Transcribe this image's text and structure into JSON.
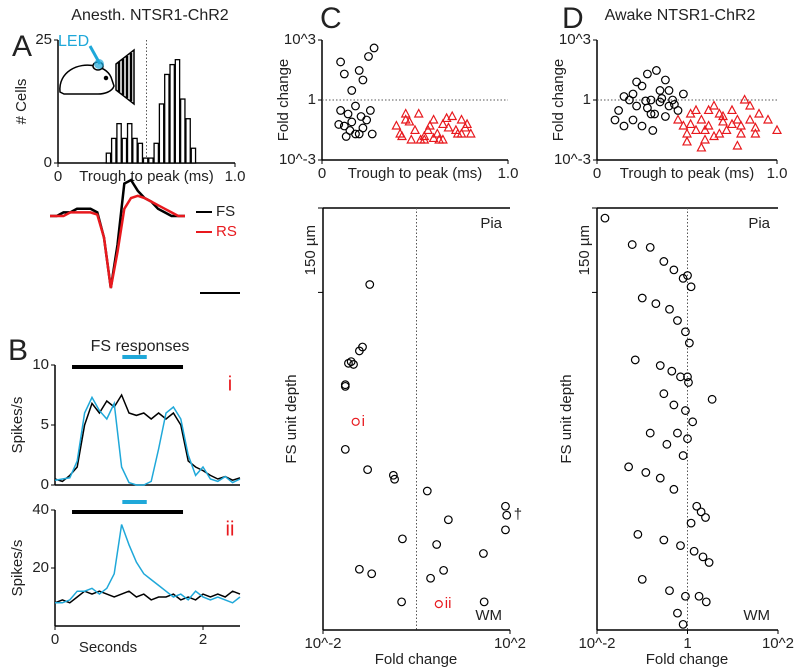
{
  "chart_data": [
    {
      "type": "histogram",
      "panel": "A",
      "title": "Anesth. NTSR1-ChR2",
      "annotation": "LED",
      "xlabel": "Trough to peak (ms)",
      "ylabel": "# Cells",
      "bins": [
        0.27,
        0.3,
        0.33,
        0.36,
        0.39,
        0.42,
        0.45,
        0.48,
        0.51,
        0.54,
        0.57,
        0.6,
        0.63,
        0.66,
        0.69,
        0.72,
        0.75,
        0.78
      ],
      "counts": [
        2,
        5,
        8,
        5,
        8,
        5,
        4,
        1,
        1,
        4,
        12,
        18,
        20,
        21,
        13,
        9,
        3
      ],
      "xlim": [
        0,
        1
      ],
      "xticks": [
        0,
        {
          "value": 1,
          "label": "1.0"
        }
      ],
      "ylim": [
        0,
        25
      ],
      "yticks": [
        0,
        25
      ],
      "vline": 0.5
    },
    {
      "type": "line",
      "series": [
        {
          "name": "FS",
          "color": "#000000",
          "values": [
            0,
            0,
            0.05,
            0.05,
            0.1,
            0.1,
            0.1,
            0.05,
            -0.3,
            -1,
            -0.4,
            0.45,
            0.5,
            0.35,
            0.25,
            0.2,
            0.1,
            0.05,
            0,
            0,
            0
          ]
        },
        {
          "name": "RS",
          "color": "#e8191e",
          "values": [
            0,
            0,
            0,
            0.05,
            0.05,
            0.05,
            0.05,
            0.02,
            -0.3,
            -1,
            -0.5,
            0.1,
            0.25,
            0.28,
            0.25,
            0.2,
            0.15,
            0.1,
            0.05,
            0,
            0
          ]
        }
      ]
    },
    {
      "type": "line",
      "panel": "B",
      "title": "FS responses",
      "tag": "i",
      "ylabel": "Spikes/s",
      "x": [
        0,
        0.1,
        0.2,
        0.3,
        0.4,
        0.5,
        0.6,
        0.7,
        0.8,
        0.9,
        1,
        1.1,
        1.2,
        1.3,
        1.4,
        1.5,
        1.6,
        1.7,
        1.8,
        1.9,
        2,
        2.1,
        2.2,
        2.3,
        2.4,
        2.5
      ],
      "series": [
        {
          "color": "#000000",
          "values": [
            0.5,
            0.3,
            0.8,
            1.5,
            5,
            6.8,
            6,
            7,
            6.5,
            7.5,
            6,
            5.8,
            6,
            5.5,
            6,
            5.5,
            6,
            5,
            2,
            1.5,
            1.2,
            0.8,
            0.5,
            0.7,
            0.4,
            0.6
          ]
        },
        {
          "color": "#1fa8d9",
          "values": [
            0.4,
            0.5,
            0.6,
            2,
            6,
            7.3,
            6.2,
            5.5,
            6.8,
            1.5,
            0.2,
            0,
            0,
            0.3,
            3,
            6,
            6.5,
            5.5,
            2.5,
            0.8,
            1.5,
            0.5,
            0.3,
            0.7,
            0.2,
            0.5
          ]
        }
      ],
      "stimulus": [
        0.23,
        1.73
      ],
      "led": [
        0.91,
        1.24
      ],
      "xlim": [
        0,
        2.5
      ],
      "ylim": [
        0,
        10
      ],
      "yticks": [
        0,
        5,
        10
      ]
    },
    {
      "type": "line",
      "tag": "ii",
      "ylabel": "Spikes/s",
      "xlabel": "Seconds",
      "x": [
        0,
        0.1,
        0.2,
        0.3,
        0.4,
        0.5,
        0.6,
        0.7,
        0.8,
        0.9,
        1,
        1.1,
        1.2,
        1.3,
        1.4,
        1.5,
        1.6,
        1.7,
        1.8,
        1.9,
        2,
        2.1,
        2.2,
        2.3,
        2.4,
        2.5
      ],
      "series": [
        {
          "color": "#000000",
          "values": [
            8,
            9,
            8,
            10,
            12,
            11,
            12,
            11,
            10,
            11,
            12,
            10,
            11,
            9,
            10,
            10,
            11,
            9,
            10,
            9,
            11,
            10,
            11,
            10,
            12,
            11
          ]
        },
        {
          "color": "#1fa8d9",
          "values": [
            8,
            8,
            9,
            12,
            12,
            13,
            11,
            13,
            18,
            35,
            28,
            22,
            18,
            16,
            14,
            12,
            10,
            11,
            9,
            12,
            10,
            9,
            10,
            9,
            8,
            10
          ]
        }
      ],
      "stimulus": [
        0.23,
        1.73
      ],
      "led": [
        0.91,
        1.24
      ],
      "xlim": [
        0,
        2.5
      ],
      "xticks": [
        0,
        2
      ],
      "ylim": [
        0,
        40
      ],
      "yticks": [
        20,
        40
      ]
    },
    {
      "type": "scatter",
      "panel": "C",
      "xlabel": "Trough to peak (ms)",
      "ylabel": "Fold change",
      "log_y": true,
      "xlim": [
        0,
        1
      ],
      "xticks": [
        0,
        {
          "value": 1,
          "label": "1.0"
        }
      ],
      "ylim": [
        0.001,
        1000
      ],
      "yticks": [
        {
          "value": 0.001,
          "label": "10^-3"
        },
        1,
        {
          "value": 1000,
          "label": "10^3"
        }
      ],
      "hline": 1,
      "series": [
        {
          "color": "#000000",
          "marker": "circle",
          "x": [
            0.1,
            0.12,
            0.2,
            0.25,
            0.28,
            0.22,
            0.16,
            0.1,
            0.14,
            0.18,
            0.24,
            0.12,
            0.15,
            0.2,
            0.26,
            0.09,
            0.18,
            0.22,
            0.13,
            0.27,
            0.16,
            0.21
          ],
          "y": [
            80,
            20,
            30,
            150,
            400,
            10,
            3,
            0.3,
            0.2,
            0.5,
            0.1,
            0.05,
            0.03,
            0.02,
            0.3,
            0.06,
            0.02,
            0.04,
            0.015,
            0.02,
            0.08,
            0.15
          ]
        },
        {
          "color": "#e8191e",
          "marker": "triangle",
          "x": [
            0.4,
            0.42,
            0.45,
            0.48,
            0.5,
            0.52,
            0.55,
            0.58,
            0.6,
            0.62,
            0.65,
            0.68,
            0.7,
            0.72,
            0.75,
            0.78,
            0.8,
            0.43,
            0.47,
            0.53,
            0.57,
            0.63,
            0.67,
            0.73,
            0.77,
            0.45,
            0.55,
            0.65,
            0.75,
            0.6
          ],
          "y": [
            0.05,
            0.02,
            0.1,
            0.01,
            0.03,
            0.2,
            0.01,
            0.05,
            0.1,
            0.02,
            0.01,
            0.04,
            0.15,
            0.03,
            0.02,
            0.06,
            0.02,
            0.015,
            0.08,
            0.01,
            0.03,
            0.01,
            0.12,
            0.02,
            0.04,
            0.2,
            0.015,
            0.06,
            0.1,
            0.012
          ]
        }
      ]
    },
    {
      "type": "scatter",
      "xlabel": "Fold change",
      "ylabel": "FS unit depth",
      "log_x": true,
      "top_label": "Pia",
      "bottom_label": "WM",
      "xlim": [
        0.01,
        100
      ],
      "xticks": [
        {
          "value": 0.01,
          "label": "10^-2"
        },
        {
          "value": 100,
          "label": "10^2"
        }
      ],
      "ylim": [
        750,
        0
      ],
      "vline": 1,
      "scale_bar": {
        "value": 150,
        "label": "150 µm"
      },
      "series": [
        {
          "color": "#000000",
          "marker": "circle",
          "x": [
            0.1,
            0.07,
            0.04,
            0.035,
            0.03,
            0.03,
            0.045,
            0.06,
            0.03,
            0.09,
            0.32,
            0.34,
            1.7,
            4.8,
            80,
            85,
            80,
            0.5,
            2.7,
            27,
            0.06,
            0.11,
            3.8,
            2,
            0.48,
            28
          ],
          "y": [
            136,
            247,
            273,
            276,
            317,
            314,
            278,
            254,
            429,
            465,
            475,
            482,
            503,
            554,
            530,
            546,
            572,
            588,
            598,
            614,
            642,
            650,
            644,
            658,
            700,
            700
          ]
        }
      ],
      "annotations": [
        {
          "x": 0.05,
          "y": 380,
          "label": "i",
          "color": "#e8191e"
        },
        {
          "x": 3,
          "y": 704,
          "label": "ii",
          "color": "#e8191e"
        },
        {
          "x": 85,
          "y": 546,
          "label": "†"
        }
      ]
    },
    {
      "type": "scatter",
      "panel": "D",
      "title": "Awake NTSR1-ChR2",
      "xlabel": "Trough to peak (ms)",
      "ylabel": "Fold change",
      "log_y": true,
      "xlim": [
        0,
        1
      ],
      "xticks": [
        0,
        {
          "value": 1,
          "label": "1.0"
        }
      ],
      "ylim": [
        0.001,
        1000
      ],
      "yticks": [
        {
          "value": 0.001,
          "label": "10^-3"
        },
        1,
        {
          "value": 1000,
          "label": "10^3"
        }
      ],
      "hline": 1,
      "series": [
        {
          "color": "#000000",
          "marker": "circle",
          "x": [
            0.1,
            0.12,
            0.15,
            0.18,
            0.2,
            0.22,
            0.25,
            0.28,
            0.3,
            0.32,
            0.35,
            0.38,
            0.4,
            0.42,
            0.45,
            0.48,
            0.2,
            0.25,
            0.3,
            0.35,
            0.4,
            0.15,
            0.28,
            0.33,
            0.22,
            0.38,
            0.27,
            0.43,
            0.31,
            0.36
          ],
          "y": [
            0.1,
            0.3,
            0.05,
            1,
            2,
            0.5,
            5,
            20,
            1,
            0.2,
            3,
            10,
            0.5,
            1,
            0.3,
            2,
            0.1,
            0.05,
            0.2,
            0.8,
            3,
            1.5,
            0.4,
            30,
            8,
            0.15,
            0.9,
            0.6,
            0.03,
            1.2
          ]
        },
        {
          "color": "#e8191e",
          "marker": "triangle",
          "x": [
            0.45,
            0.48,
            0.5,
            0.52,
            0.55,
            0.58,
            0.6,
            0.62,
            0.65,
            0.68,
            0.7,
            0.72,
            0.75,
            0.78,
            0.8,
            0.82,
            0.85,
            0.88,
            0.9,
            0.95,
            1,
            0.5,
            0.55,
            0.6,
            0.65,
            0.7,
            0.75,
            0.8,
            0.85,
            0.58,
            0.68,
            0.78,
            0.88,
            0.52,
            0.62
          ],
          "y": [
            0.1,
            0.05,
            0.02,
            0.2,
            0.03,
            0.1,
            0.01,
            0.05,
            0.5,
            0.02,
            0.08,
            0.03,
            0.3,
            0.005,
            0.05,
            1,
            0.1,
            0.02,
            0.2,
            0.1,
            0.03,
            0.008,
            0.3,
            0.03,
            0.015,
            0.15,
            0.06,
            0.02,
            0.5,
            0.004,
            0.2,
            0.1,
            0.04,
            0.06,
            0.3
          ]
        }
      ]
    },
    {
      "type": "scatter",
      "xlabel": "Fold change",
      "ylabel": "FS unit depth",
      "log_x": true,
      "top_label": "Pia",
      "bottom_label": "WM",
      "xlim": [
        0.01,
        100
      ],
      "xticks": [
        {
          "value": 0.01,
          "label": "10^-2"
        },
        1,
        {
          "value": 100,
          "label": "10^2"
        }
      ],
      "ylim": [
        750,
        0
      ],
      "vline": 1,
      "scale_bar": {
        "value": 150,
        "label": "150 µm"
      },
      "series": [
        {
          "color": "#000000",
          "marker": "circle",
          "x": [
            0.015,
            0.06,
            0.15,
            0.3,
            0.5,
            0.8,
            1,
            1.2,
            0.1,
            0.2,
            0.4,
            0.6,
            0.9,
            1.1,
            0.07,
            0.25,
            0.45,
            0.7,
            1,
            1.05,
            0.3,
            0.5,
            0.9,
            1.3,
            3.5,
            0.15,
            0.35,
            0.6,
            1,
            0.8,
            0.05,
            0.12,
            0.25,
            0.5,
            1.6,
            2,
            2.5,
            1.2,
            0.08,
            0.3,
            0.7,
            1.4,
            2.2,
            3,
            0.1,
            0.4,
            0.9,
            1.8,
            0.6,
            0.8,
            2.6
          ],
          "y": [
            18,
            65,
            70,
            95,
            110,
            125,
            120,
            140,
            160,
            170,
            180,
            200,
            220,
            240,
            270,
            280,
            290,
            300,
            300,
            310,
            330,
            350,
            360,
            380,
            340,
            400,
            420,
            400,
            410,
            440,
            460,
            470,
            480,
            500,
            530,
            540,
            550,
            560,
            580,
            590,
            600,
            610,
            620,
            630,
            660,
            680,
            690,
            690,
            720,
            740,
            700
          ]
        }
      ]
    }
  ]
}
